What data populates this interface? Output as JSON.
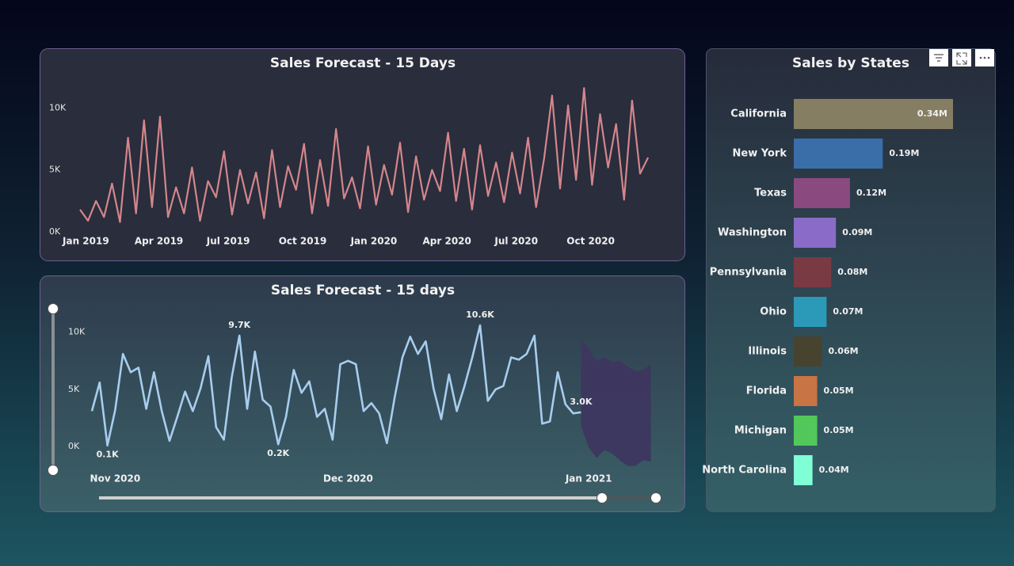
{
  "chart_data": [
    {
      "type": "line",
      "title": "Sales Forecast - 15 Days",
      "categories": [
        "Jan 2019",
        null,
        null,
        null,
        null,
        null,
        null,
        null,
        null,
        "Apr 2019",
        null,
        null,
        null,
        null,
        null,
        null,
        null,
        null,
        "Jul 2019",
        null,
        null,
        null,
        null,
        null,
        null,
        null,
        null,
        "Oct 2019",
        null,
        null,
        null,
        null,
        null,
        null,
        null,
        null,
        "Jan 2020",
        null,
        null,
        null,
        null,
        null,
        null,
        null,
        null,
        "Apr 2020",
        null,
        null,
        null,
        null,
        null,
        null,
        null,
        null,
        "Jul 2020",
        null,
        null,
        null,
        null,
        null,
        null,
        null,
        null,
        "Oct 2020",
        null,
        null,
        null,
        null,
        null,
        null,
        null,
        null
      ],
      "values": [
        1800,
        900,
        2500,
        1200,
        3900,
        800,
        7600,
        1500,
        9000,
        2000,
        9300,
        1200,
        3600,
        1500,
        5200,
        900,
        4100,
        2800,
        6500,
        1400,
        5000,
        2300,
        4800,
        1100,
        6600,
        2000,
        5300,
        3400,
        7100,
        1500,
        5800,
        2100,
        8300,
        2700,
        4400,
        1900,
        6900,
        2200,
        5400,
        3000,
        7200,
        1600,
        6100,
        2600,
        5000,
        3300,
        8000,
        2500,
        6700,
        1800,
        7000,
        2900,
        5600,
        2400,
        6400,
        3100,
        7600,
        2000,
        5900,
        11000,
        3500,
        10200,
        4200,
        11600,
        3800,
        9500,
        5200,
        8700,
        2600,
        10600,
        4700,
        6000
      ],
      "color": "#d4868b",
      "ylim": [
        0,
        12000
      ],
      "yticks": [
        {
          "value": 0,
          "label": "0K"
        },
        {
          "value": 5000,
          "label": "5K"
        },
        {
          "value": 10000,
          "label": "10K"
        }
      ]
    },
    {
      "type": "line",
      "title": "Sales Forecast - 15 days",
      "categories": [
        null,
        null,
        null,
        "Nov 2020",
        null,
        null,
        null,
        null,
        null,
        null,
        null,
        null,
        null,
        null,
        null,
        null,
        null,
        null,
        null,
        null,
        null,
        null,
        null,
        null,
        null,
        null,
        null,
        null,
        null,
        null,
        null,
        null,
        null,
        "Dec 2020",
        null,
        null,
        null,
        null,
        null,
        null,
        null,
        null,
        null,
        null,
        null,
        null,
        null,
        null,
        null,
        null,
        null,
        null,
        null,
        null,
        null,
        null,
        null,
        null,
        null,
        null,
        null,
        null,
        null,
        null,
        "Jan 2021",
        null,
        null,
        null,
        null,
        null,
        null,
        null,
        null
      ],
      "values": [
        3100,
        5600,
        100,
        3200,
        8100,
        6500,
        6900,
        3300,
        6500,
        3100,
        500,
        2600,
        4800,
        3100,
        5100,
        7900,
        1700,
        600,
        6000,
        9700,
        3300,
        8300,
        4100,
        3500,
        200,
        2600,
        6700,
        4700,
        5700,
        2600,
        3300,
        600,
        7200,
        7500,
        7200,
        3100,
        3800,
        2900,
        300,
        4300,
        7800,
        9600,
        8100,
        9200,
        5100,
        2400,
        6300,
        3100,
        5300,
        7800,
        10600,
        4000,
        5000,
        5300,
        7800,
        7600,
        8100,
        9700,
        2000,
        2200,
        6500,
        3700,
        2900,
        3000,
        null,
        null,
        null,
        null,
        null,
        null,
        null,
        null,
        null
      ],
      "value_labels": [
        null,
        null,
        "0.1K",
        null,
        null,
        null,
        null,
        null,
        null,
        null,
        null,
        null,
        null,
        null,
        null,
        null,
        null,
        null,
        null,
        "9.7K",
        null,
        null,
        null,
        null,
        "0.2K",
        null,
        null,
        null,
        null,
        null,
        null,
        null,
        null,
        null,
        null,
        null,
        null,
        null,
        null,
        null,
        null,
        null,
        null,
        null,
        null,
        null,
        null,
        null,
        null,
        null,
        "10.6K",
        null,
        null,
        null,
        null,
        null,
        null,
        null,
        null,
        null,
        null,
        null,
        null,
        "3.0K",
        null,
        null,
        null,
        null,
        null,
        null,
        null,
        null,
        null
      ],
      "color": "#a8cdee",
      "band_lower": [
        null,
        null,
        null,
        null,
        null,
        null,
        null,
        null,
        null,
        null,
        null,
        null,
        null,
        null,
        null,
        null,
        null,
        null,
        null,
        null,
        null,
        null,
        null,
        null,
        null,
        null,
        null,
        null,
        null,
        null,
        null,
        null,
        null,
        null,
        null,
        null,
        null,
        null,
        null,
        null,
        null,
        null,
        null,
        null,
        null,
        null,
        null,
        null,
        null,
        null,
        null,
        null,
        null,
        null,
        null,
        null,
        null,
        null,
        null,
        null,
        null,
        null,
        null,
        1800,
        -100,
        -1000,
        -300,
        -600,
        -1200,
        -1700,
        -1700,
        -1200,
        -1300
      ],
      "band_upper": [
        null,
        null,
        null,
        null,
        null,
        null,
        null,
        null,
        null,
        null,
        null,
        null,
        null,
        null,
        null,
        null,
        null,
        null,
        null,
        null,
        null,
        null,
        null,
        null,
        null,
        null,
        null,
        null,
        null,
        null,
        null,
        null,
        null,
        null,
        null,
        null,
        null,
        null,
        null,
        null,
        null,
        null,
        null,
        null,
        null,
        null,
        null,
        null,
        null,
        null,
        null,
        null,
        null,
        null,
        null,
        null,
        null,
        null,
        null,
        null,
        null,
        null,
        null,
        9400,
        8600,
        7500,
        7800,
        7400,
        7500,
        7000,
        6600,
        6700,
        7200
      ],
      "band_color": "#3e3560",
      "ylim": [
        -2000,
        11500
      ],
      "yticks": [
        {
          "value": 0,
          "label": "0K"
        },
        {
          "value": 5000,
          "label": "5K"
        },
        {
          "value": 10000,
          "label": "10K"
        }
      ]
    },
    {
      "type": "bar",
      "orientation": "horizontal",
      "title": "Sales by States",
      "categories": [
        "California",
        "New York",
        "Texas",
        "Washington",
        "Pennsylvania",
        "Ohio",
        "Illinois",
        "Florida",
        "Michigan",
        "North Carolina"
      ],
      "values": [
        0.34,
        0.19,
        0.12,
        0.09,
        0.08,
        0.07,
        0.06,
        0.05,
        0.05,
        0.04
      ],
      "value_labels": [
        "0.34M",
        "0.19M",
        "0.12M",
        "0.09M",
        "0.08M",
        "0.07M",
        "0.06M",
        "0.05M",
        "0.05M",
        "0.04M"
      ],
      "colors": [
        "#857e63",
        "#3a6ea8",
        "#8a4a80",
        "#8a6cc8",
        "#7a3a44",
        "#2a9ab8",
        "#47432f",
        "#c87444",
        "#52c85a",
        "#80ffd6"
      ]
    }
  ]
}
